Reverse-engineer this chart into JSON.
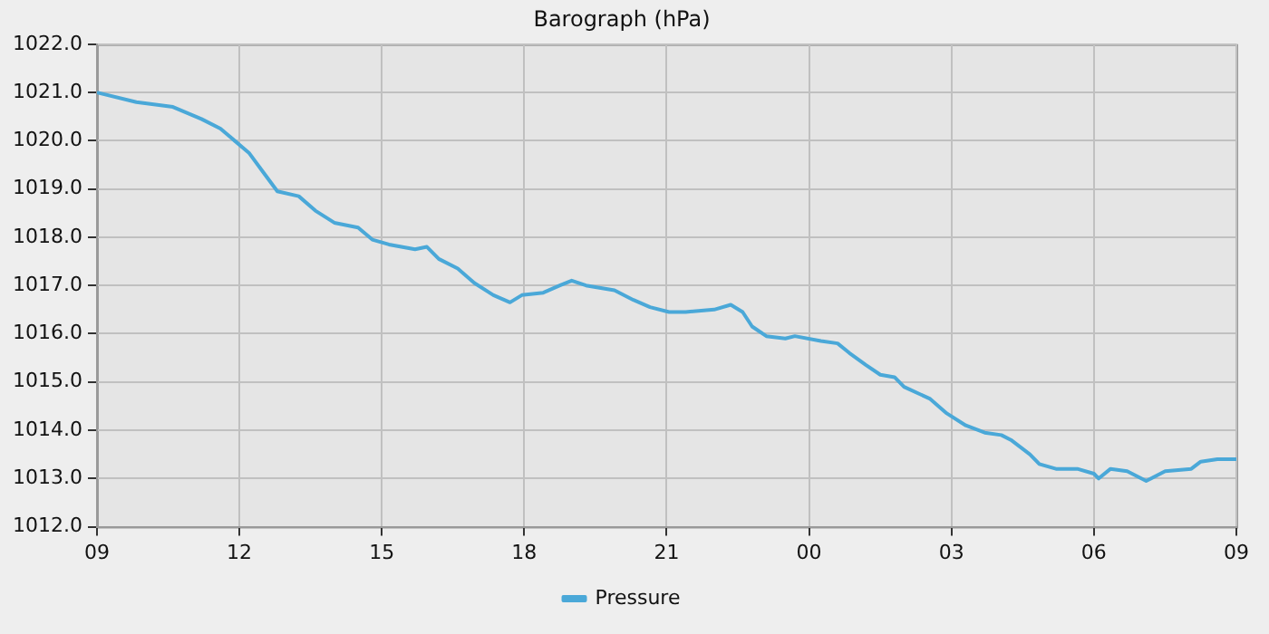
{
  "chart_data": {
    "type": "line",
    "title": "Barograph (hPa)",
    "legend": "bottom",
    "grid": true,
    "marker": "none",
    "line_style": "solid",
    "xlim": [
      9,
      33
    ],
    "xticks": [
      {
        "value": 9,
        "label": "09"
      },
      {
        "value": 12,
        "label": "12"
      },
      {
        "value": 15,
        "label": "15"
      },
      {
        "value": 18,
        "label": "18"
      },
      {
        "value": 21,
        "label": "21"
      },
      {
        "value": 24,
        "label": "00"
      },
      {
        "value": 27,
        "label": "03"
      },
      {
        "value": 30,
        "label": "06"
      },
      {
        "value": 33,
        "label": "09"
      }
    ],
    "ylim": [
      1012,
      1022
    ],
    "yticks": [
      {
        "value": 1012,
        "label": "1012.0"
      },
      {
        "value": 1013,
        "label": "1013.0"
      },
      {
        "value": 1014,
        "label": "1014.0"
      },
      {
        "value": 1015,
        "label": "1015.0"
      },
      {
        "value": 1016,
        "label": "1016.0"
      },
      {
        "value": 1017,
        "label": "1017.0"
      },
      {
        "value": 1018,
        "label": "1018.0"
      },
      {
        "value": 1019,
        "label": "1019.0"
      },
      {
        "value": 1020,
        "label": "1020.0"
      },
      {
        "value": 1021,
        "label": "1021.0"
      },
      {
        "value": 1022,
        "label": "1022.0"
      }
    ],
    "x": [
      9,
      9.83,
      10.6,
      11.2,
      11.6,
      11.9,
      12.2,
      12.5,
      12.8,
      13.25,
      13.6,
      14.0,
      14.5,
      14.8,
      15.15,
      15.7,
      15.95,
      16.2,
      16.6,
      16.95,
      17.35,
      17.7,
      17.95,
      18.4,
      18.75,
      19.0,
      19.3,
      19.9,
      20.3,
      20.65,
      21.05,
      21.4,
      22.0,
      22.35,
      22.6,
      22.8,
      23.1,
      23.5,
      23.7,
      24.25,
      24.6,
      24.85,
      25.2,
      25.5,
      25.8,
      26.0,
      26.55,
      26.9,
      27.3,
      27.7,
      28.05,
      28.25,
      28.65,
      28.85,
      29.2,
      29.65,
      30.0,
      30.1,
      30.35,
      30.7,
      31.1,
      31.5,
      32.05,
      32.25,
      32.6,
      33.0
    ],
    "series": [
      {
        "name": "Pressure",
        "color": "#4aa8d8",
        "values": [
          1021.0,
          1020.8,
          1020.7,
          1020.45,
          1020.25,
          1020.0,
          1019.75,
          1019.35,
          1018.95,
          1018.85,
          1018.55,
          1018.3,
          1018.2,
          1017.95,
          1017.85,
          1017.75,
          1017.8,
          1017.55,
          1017.35,
          1017.05,
          1016.8,
          1016.65,
          1016.8,
          1016.85,
          1017.0,
          1017.1,
          1017.0,
          1016.9,
          1016.7,
          1016.55,
          1016.45,
          1016.45,
          1016.5,
          1016.6,
          1016.45,
          1016.15,
          1015.95,
          1015.9,
          1015.95,
          1015.85,
          1015.8,
          1015.6,
          1015.35,
          1015.15,
          1015.1,
          1014.9,
          1014.65,
          1014.35,
          1014.1,
          1013.95,
          1013.9,
          1013.8,
          1013.5,
          1013.3,
          1013.2,
          1013.2,
          1013.1,
          1013.0,
          1013.2,
          1013.15,
          1012.95,
          1013.15,
          1013.2,
          1013.35,
          1013.4,
          1013.4
        ]
      }
    ]
  }
}
